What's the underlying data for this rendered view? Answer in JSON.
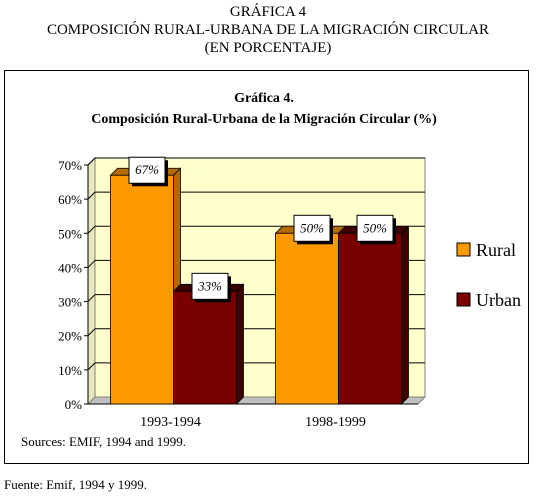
{
  "document": {
    "title_lines": [
      "GRÁFICA 4",
      "COMPOSICIÓN RURAL-URBANA DE LA MIGRACIÓN CIRCULAR",
      "(EN PORCENTAJE)"
    ],
    "footnote": "Fuente: Emif, 1994 y 1999."
  },
  "colors": {
    "rural": "#FF9900",
    "urban": "#7A0000",
    "plot_bg": "#FFFFCC",
    "frame": "#000000"
  },
  "chart_data": {
    "type": "bar",
    "title": "Gráfica 4.",
    "subtitle": "Composición Rural-Urbana de la Migración Circular (%)",
    "categories": [
      "1993-1994",
      "1998-1999"
    ],
    "series": [
      {
        "name": "Rural",
        "values": [
          67,
          50
        ]
      },
      {
        "name": "Urban",
        "values": [
          33,
          50
        ]
      }
    ],
    "data_labels": [
      [
        "67%",
        "50%"
      ],
      [
        "33%",
        "50%"
      ]
    ],
    "ylim": [
      0,
      70
    ],
    "yticks": [
      "0%",
      "10%",
      "20%",
      "30%",
      "40%",
      "50%",
      "60%",
      "70%"
    ],
    "grid": true,
    "legend_position": "right",
    "source_note": "Sources: EMIF, 1994 and 1999."
  }
}
